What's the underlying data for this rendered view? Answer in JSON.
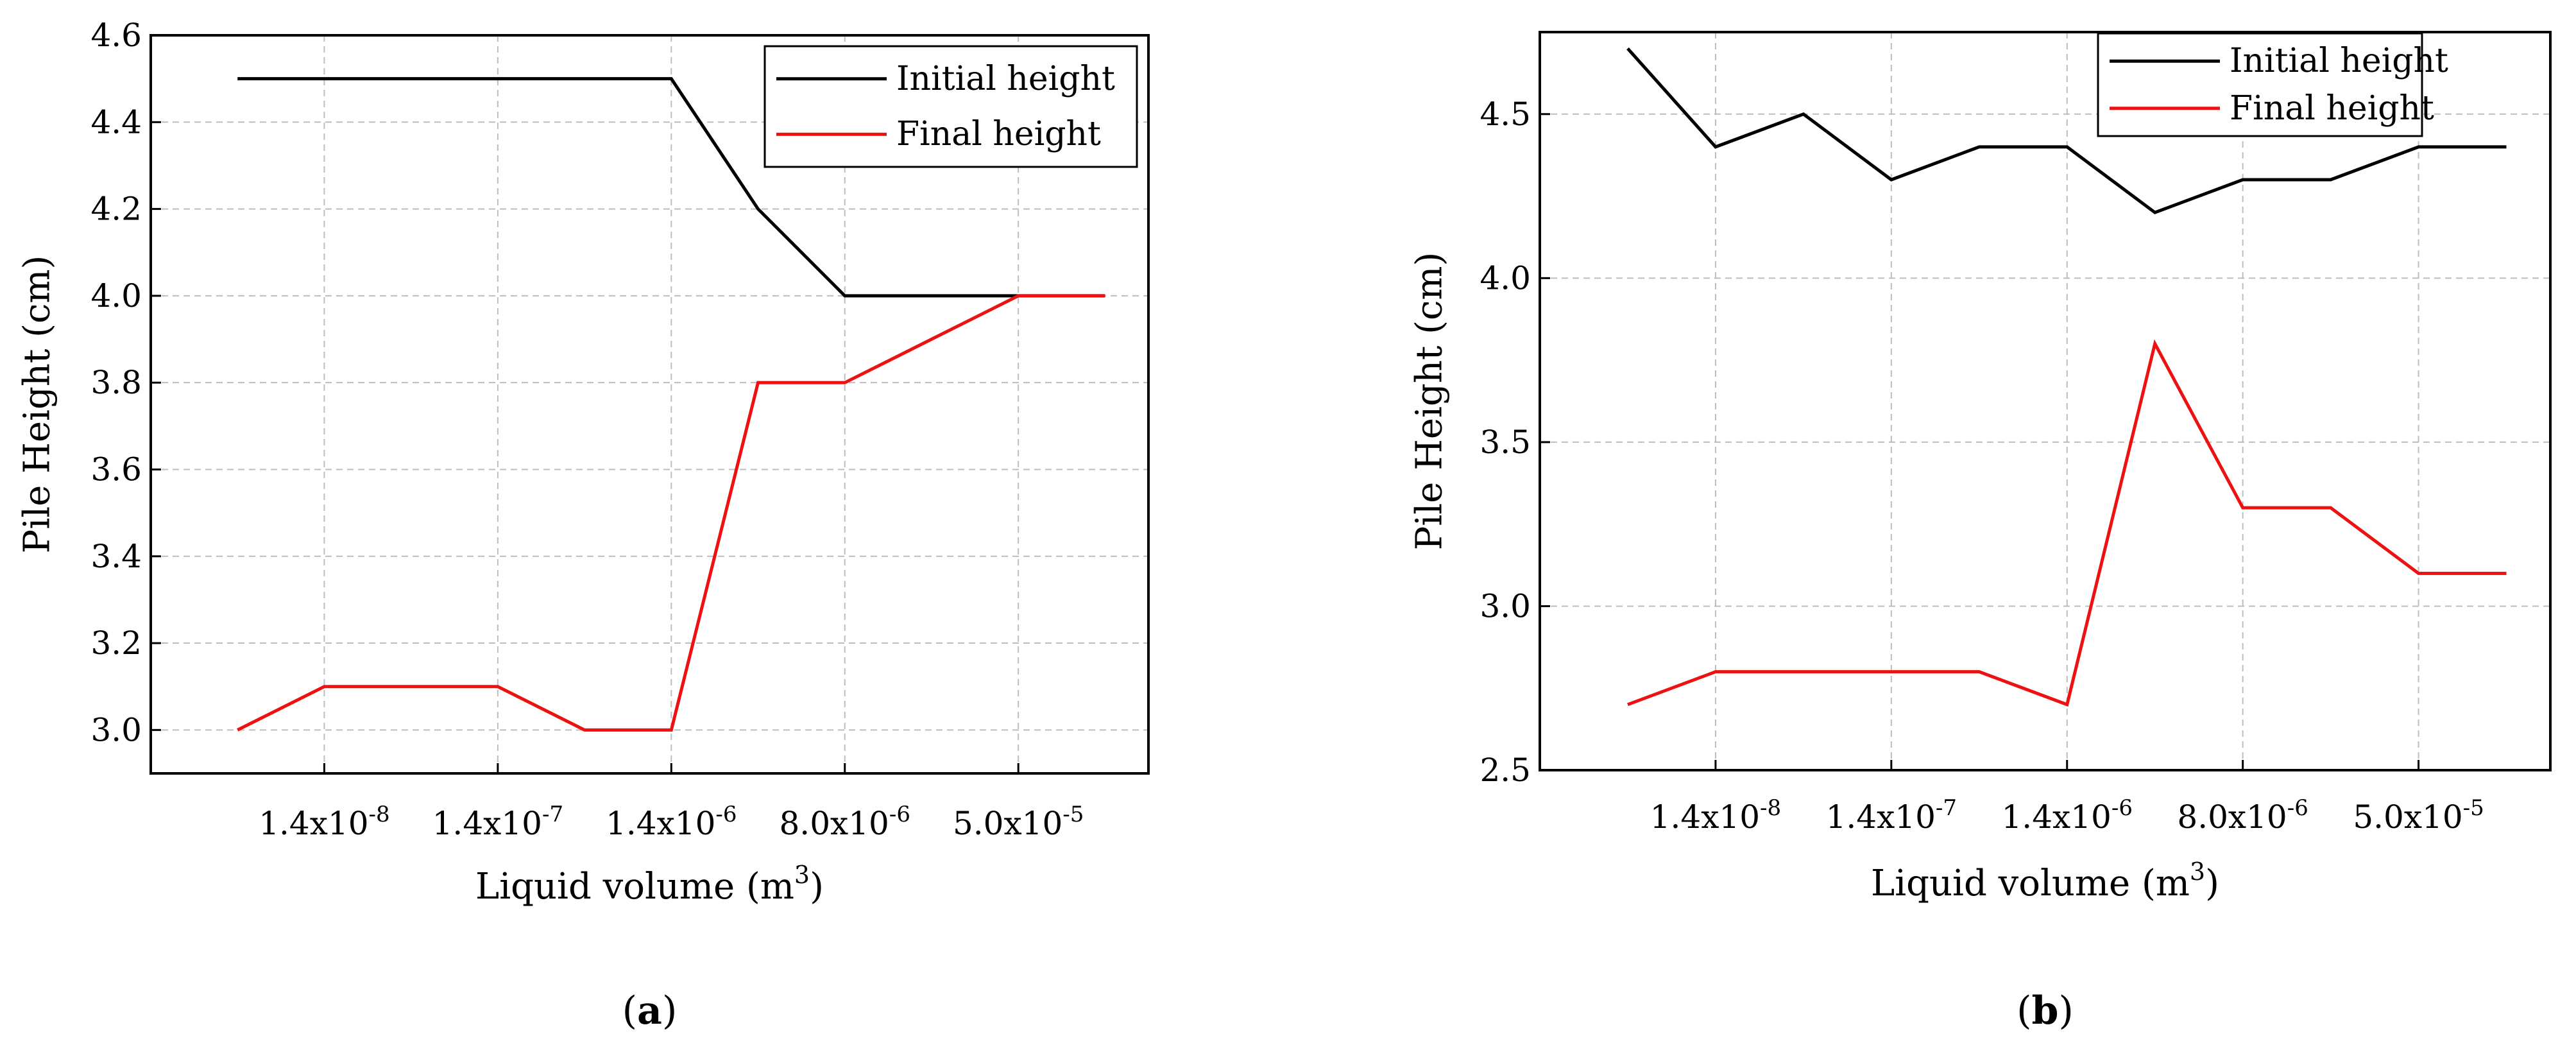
{
  "chart_data": [
    {
      "type": "line",
      "panel_label": "a",
      "xlabel": "Liquid volume (m",
      "xlabel_superscript": "3",
      "xlabel_suffix": ")",
      "ylabel": "Pile Height (cm)",
      "ylim": [
        2.9,
        4.6
      ],
      "xlim": [
        0,
        11.5
      ],
      "y_ticks": [
        3.0,
        3.2,
        3.4,
        3.6,
        3.8,
        4.0,
        4.2,
        4.4,
        4.6
      ],
      "y_tick_labels": [
        "3.0",
        "3.2",
        "3.4",
        "3.6",
        "3.8",
        "4.0",
        "4.2",
        "4.4",
        "4.6"
      ],
      "x_ticks": [
        {
          "x": 2,
          "mantissa": "1.4x10",
          "exponent": "-8"
        },
        {
          "x": 4,
          "mantissa": "1.4x10",
          "exponent": "-7"
        },
        {
          "x": 6,
          "mantissa": "1.4x10",
          "exponent": "-6"
        },
        {
          "x": 8,
          "mantissa": "8.0x10",
          "exponent": "-6"
        },
        {
          "x": 10,
          "mantissa": "5.0x10",
          "exponent": "-5"
        }
      ],
      "grid": true,
      "legend_position": "top-right",
      "series": [
        {
          "name": "Initial height",
          "color": "#000000",
          "x": [
            1,
            2,
            3,
            4,
            5,
            6,
            7,
            8,
            9,
            10,
            11
          ],
          "values": [
            4.5,
            4.5,
            4.5,
            4.5,
            4.5,
            4.5,
            4.2,
            4.0,
            4.0,
            4.0,
            4.0
          ]
        },
        {
          "name": "Final height",
          "color": "#ee1111",
          "x": [
            1,
            2,
            3,
            4,
            5,
            6,
            7,
            8,
            9,
            10,
            11
          ],
          "values": [
            3.0,
            3.1,
            3.1,
            3.1,
            3.0,
            3.0,
            3.8,
            3.8,
            3.9,
            4.0,
            4.0
          ]
        }
      ]
    },
    {
      "type": "line",
      "panel_label": "b",
      "xlabel": "Liquid volume (m",
      "xlabel_superscript": "3",
      "xlabel_suffix": ")",
      "ylabel": "Pile Height (cm)",
      "ylim": [
        2.5,
        4.75
      ],
      "xlim": [
        0,
        11.5
      ],
      "y_ticks": [
        2.5,
        3.0,
        3.5,
        4.0,
        4.5
      ],
      "y_tick_labels": [
        "2.5",
        "3.0",
        "3.5",
        "4.0",
        "4.5"
      ],
      "x_ticks": [
        {
          "x": 2,
          "mantissa": "1.4x10",
          "exponent": "-8"
        },
        {
          "x": 4,
          "mantissa": "1.4x10",
          "exponent": "-7"
        },
        {
          "x": 6,
          "mantissa": "1.4x10",
          "exponent": "-6"
        },
        {
          "x": 8,
          "mantissa": "8.0x10",
          "exponent": "-6"
        },
        {
          "x": 10,
          "mantissa": "5.0x10",
          "exponent": "-5"
        }
      ],
      "grid": true,
      "legend_position": "top-right",
      "series": [
        {
          "name": "Initial height",
          "color": "#000000",
          "x": [
            1,
            2,
            3,
            4,
            5,
            6,
            7,
            8,
            9,
            10,
            11
          ],
          "values": [
            4.7,
            4.4,
            4.5,
            4.3,
            4.4,
            4.4,
            4.2,
            4.3,
            4.3,
            4.4,
            4.4
          ]
        },
        {
          "name": "Final height",
          "color": "#ee1111",
          "x": [
            1,
            2,
            3,
            4,
            5,
            6,
            7,
            8,
            9,
            10,
            11
          ],
          "values": [
            2.7,
            2.8,
            2.8,
            2.8,
            2.8,
            2.7,
            3.8,
            3.3,
            3.3,
            3.1,
            3.1
          ]
        }
      ]
    }
  ]
}
